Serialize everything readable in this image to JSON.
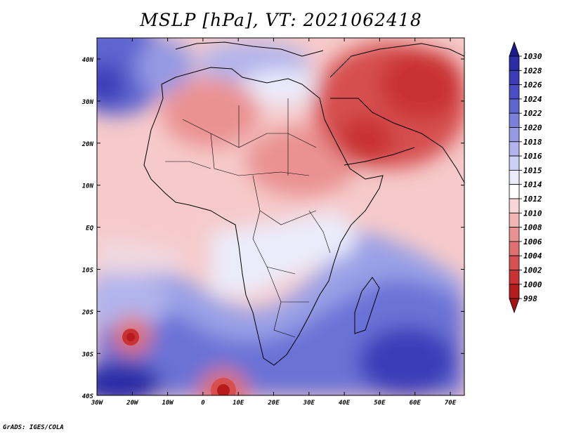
{
  "title": "MSLP [hPa], VT: 2021062418",
  "credit": "GrADS: IGES/COLA",
  "lat_labels": [
    "40N",
    "30N",
    "20N",
    "10N",
    "EQ",
    "10S",
    "20S",
    "30S",
    "40S"
  ],
  "lon_labels": [
    "30W",
    "20W",
    "10W",
    "0",
    "10E",
    "20E",
    "30E",
    "40E",
    "50E",
    "60E",
    "70E"
  ],
  "colorbar": {
    "levels": [
      "1030",
      "1028",
      "1026",
      "1024",
      "1022",
      "1020",
      "1018",
      "1016",
      "1015",
      "1014",
      "1012",
      "1010",
      "1008",
      "1006",
      "1004",
      "1002",
      "1000",
      "998"
    ],
    "colors": [
      "#1b1a8e",
      "#2b2ca6",
      "#3a3cb8",
      "#4a4ec6",
      "#5f65d0",
      "#7a80da",
      "#959ae3",
      "#b1b4ec",
      "#ccd0f5",
      "#ebecfb",
      "#ffffff",
      "#f9d6d6",
      "#f2b4b4",
      "#ea9292",
      "#e07070",
      "#d65050",
      "#c93232",
      "#b71c1c",
      "#a41515"
    ]
  }
}
